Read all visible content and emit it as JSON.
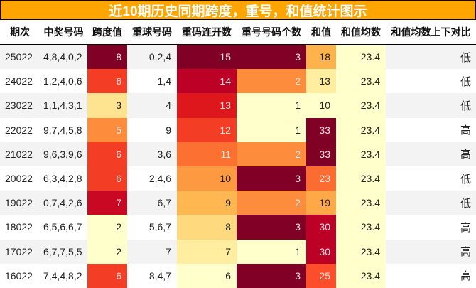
{
  "title": "近10期历史同期跨度，重号，和值统计图示",
  "colors": {
    "title_bg": "#ffa500",
    "heatmap_scale": [
      "#ffffcc",
      "#ffeda0",
      "#fed976",
      "#feb24c",
      "#fd8d3c",
      "#fc4e2a",
      "#e31a1c",
      "#bd0026",
      "#800026"
    ]
  },
  "columns": [
    "期次",
    "中奖号码",
    "跨度值",
    "重球号码",
    "重码连开数",
    "重号号码个数",
    "和值",
    "和值均数",
    "和值均数上下对比"
  ],
  "rows": [
    {
      "issue": "25022",
      "numbers": "4,8,4,0,2",
      "span": "8",
      "repeat_balls": "0,2,4",
      "repeat_streak": "15",
      "repeat_count": "3",
      "sum": "18",
      "sum_avg": "23.4",
      "compare": "低",
      "colors": {
        "span": "#800026",
        "repeat_streak": "#800026",
        "repeat_count": "#800026",
        "sum": "#feb24c",
        "sum_avg": "#ffffcc"
      }
    },
    {
      "issue": "24022",
      "numbers": "1,2,4,0,6",
      "span": "6",
      "repeat_balls": "1,4",
      "repeat_streak": "14",
      "repeat_count": "2",
      "sum": "13",
      "sum_avg": "23.4",
      "compare": "低",
      "colors": {
        "span": "#f43d25",
        "repeat_streak": "#bd0026",
        "repeat_count": "#fd8d3c",
        "sum": "#ffeda0",
        "sum_avg": "#ffffcc"
      }
    },
    {
      "issue": "23022",
      "numbers": "1,1,4,3,1",
      "span": "3",
      "repeat_balls": "4",
      "repeat_streak": "13",
      "repeat_count": "1",
      "sum": "10",
      "sum_avg": "23.4",
      "compare": "低",
      "colors": {
        "span": "#fee391",
        "repeat_streak": "#de171d",
        "repeat_count": "#ffffcc",
        "sum": "#ffffcc",
        "sum_avg": "#ffffcc"
      }
    },
    {
      "issue": "22022",
      "numbers": "9,7,4,5,8",
      "span": "5",
      "repeat_balls": "9",
      "repeat_streak": "12",
      "repeat_count": "1",
      "sum": "33",
      "sum_avg": "23.4",
      "compare": "高",
      "colors": {
        "span": "#fd8d3c",
        "repeat_streak": "#f43d25",
        "repeat_count": "#ffffcc",
        "sum": "#800026",
        "sum_avg": "#ffffcc"
      }
    },
    {
      "issue": "21022",
      "numbers": "9,6,3,9,6",
      "span": "6",
      "repeat_balls": "3,6",
      "repeat_streak": "11",
      "repeat_count": "2",
      "sum": "33",
      "sum_avg": "23.4",
      "compare": "高",
      "colors": {
        "span": "#f43d25",
        "repeat_streak": "#fc7131",
        "repeat_count": "#fd8d3c",
        "sum": "#800026",
        "sum_avg": "#ffffcc"
      }
    },
    {
      "issue": "20022",
      "numbers": "6,3,4,2,8",
      "span": "6",
      "repeat_balls": "2,4,6",
      "repeat_streak": "10",
      "repeat_count": "3",
      "sum": "23",
      "sum_avg": "23.4",
      "compare": "低",
      "colors": {
        "span": "#f43d25",
        "repeat_streak": "#fd9a41",
        "repeat_count": "#800026",
        "sum": "#fc6c30",
        "sum_avg": "#ffffcc"
      }
    },
    {
      "issue": "19022",
      "numbers": "0,7,4,2,6",
      "span": "7",
      "repeat_balls": "6,7",
      "repeat_streak": "9",
      "repeat_count": "2",
      "sum": "19",
      "sum_avg": "23.4",
      "compare": "低",
      "colors": {
        "span": "#c90823",
        "repeat_streak": "#feb751",
        "repeat_count": "#fd8d3c",
        "sum": "#fea848",
        "sum_avg": "#ffffcc"
      }
    },
    {
      "issue": "18022",
      "numbers": "6,5,6,6,7",
      "span": "2",
      "repeat_balls": "5,6,7",
      "repeat_streak": "8",
      "repeat_count": "3",
      "sum": "30",
      "sum_avg": "23.4",
      "compare": "高",
      "colors": {
        "span": "#ffffcc",
        "repeat_streak": "#fed97d",
        "repeat_count": "#800026",
        "sum": "#bd0026",
        "sum_avg": "#ffffcc"
      }
    },
    {
      "issue": "17022",
      "numbers": "6,7,7,5,5",
      "span": "2",
      "repeat_balls": "7",
      "repeat_streak": "7",
      "repeat_count": "1",
      "sum": "30",
      "sum_avg": "23.4",
      "compare": "高",
      "colors": {
        "span": "#ffffcc",
        "repeat_streak": "#ffeda0",
        "repeat_count": "#ffffcc",
        "sum": "#bd0026",
        "sum_avg": "#ffffcc"
      }
    },
    {
      "issue": "16022",
      "numbers": "7,4,4,8,2",
      "span": "6",
      "repeat_balls": "8,4,7",
      "repeat_streak": "6",
      "repeat_count": "3",
      "sum": "25",
      "sum_avg": "23.4",
      "compare": "高",
      "colors": {
        "span": "#f43d25",
        "repeat_streak": "#ffffcc",
        "repeat_count": "#800026",
        "sum": "#fc4e2a",
        "sum_avg": "#ffffcc"
      }
    }
  ]
}
